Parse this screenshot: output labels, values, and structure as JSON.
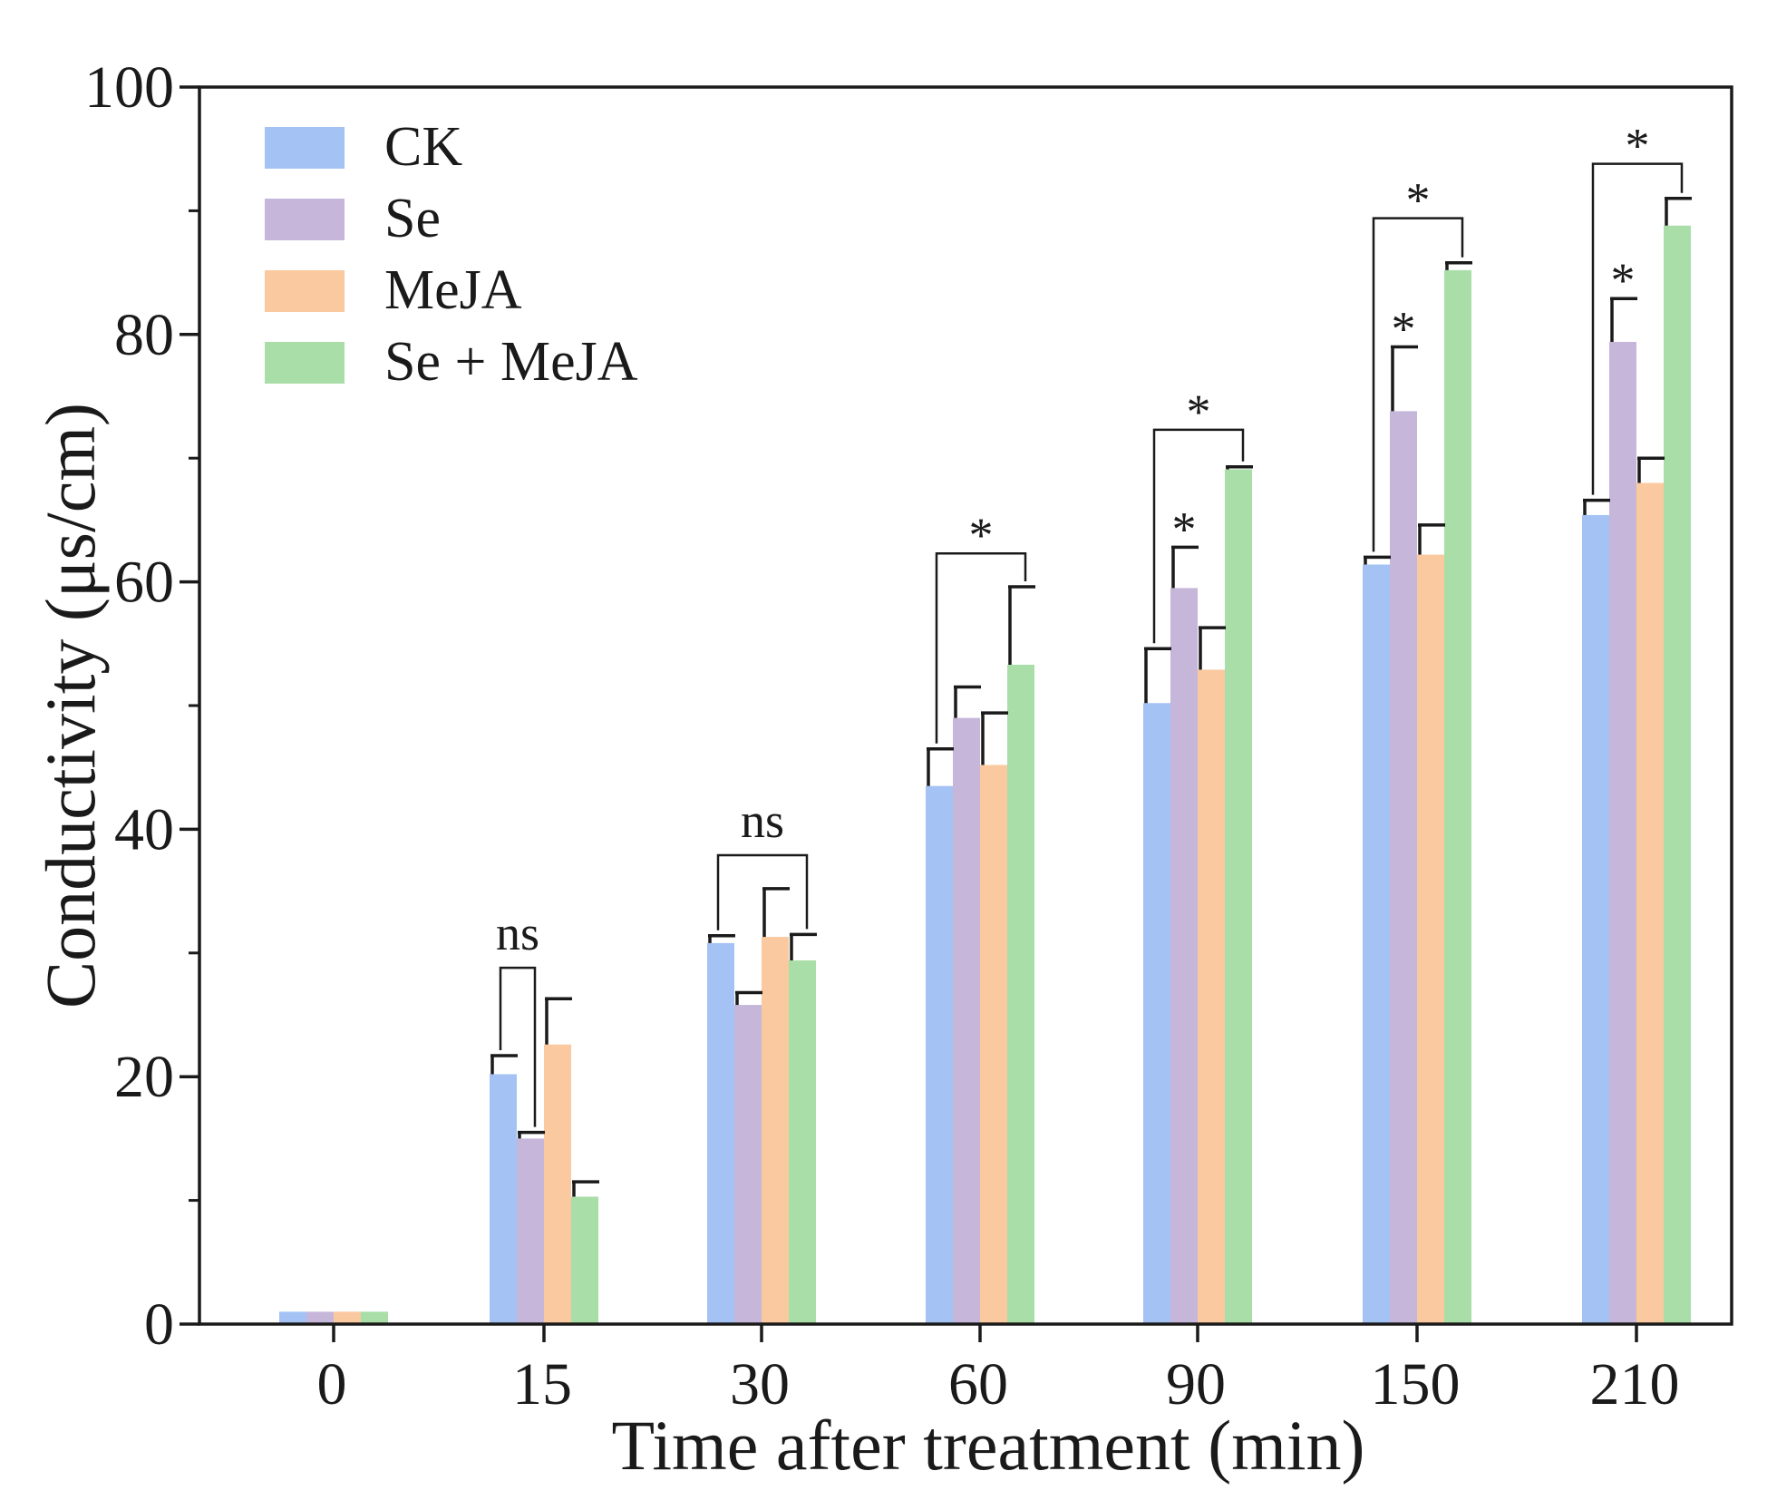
{
  "chart_data": {
    "type": "bar",
    "title": "",
    "xlabel": "Time after treatment (min)",
    "ylabel": "Conductivity (μs/cm)",
    "ylim": [
      0,
      100
    ],
    "yticks": [
      0,
      20,
      40,
      60,
      80,
      100
    ],
    "categories": [
      "0",
      "15",
      "30",
      "60",
      "90",
      "150",
      "210"
    ],
    "legend_position": "top-left",
    "series": [
      {
        "name": "CK",
        "color": "#a4c2f4",
        "values": [
          1.0,
          20.2,
          30.8,
          43.5,
          50.2,
          61.4,
          65.4
        ],
        "errors": [
          0.1,
          1.5,
          0.6,
          3.0,
          4.4,
          0.6,
          1.2
        ]
      },
      {
        "name": "Se",
        "color": "#c5b6da",
        "values": [
          1.0,
          15.0,
          25.8,
          49.0,
          59.5,
          73.8,
          79.4
        ],
        "errors": [
          0.1,
          0.5,
          1.0,
          2.5,
          3.3,
          5.2,
          3.5
        ]
      },
      {
        "name": "MeJA",
        "color": "#fac99f",
        "values": [
          1.0,
          22.6,
          31.3,
          45.2,
          52.9,
          62.2,
          68.0
        ],
        "errors": [
          0.1,
          3.7,
          3.9,
          4.2,
          3.4,
          2.4,
          2.0
        ]
      },
      {
        "name": "Se + MeJA",
        "color": "#a9dea9",
        "values": [
          1.0,
          10.3,
          29.4,
          53.3,
          69.1,
          85.2,
          88.8
        ],
        "errors": [
          0.1,
          1.2,
          2.1,
          6.3,
          0.2,
          0.6,
          2.2
        ]
      }
    ],
    "annotations": [
      {
        "text": "ns",
        "type": "bracket",
        "category": "15",
        "from_series": 0,
        "to_series": 1,
        "bracket_y": 28.8
      },
      {
        "text": "ns",
        "type": "bracket",
        "category": "30",
        "from_series": 0,
        "to_series": 3,
        "bracket_y": 37.9
      },
      {
        "text": "*",
        "type": "bracket",
        "category": "60",
        "from_series": 0,
        "to_series": 3,
        "bracket_y": 62.3
      },
      {
        "text": "*",
        "type": "bracket",
        "category": "90",
        "from_series": 0,
        "to_series": 3,
        "bracket_y": 72.3
      },
      {
        "text": "*",
        "type": "bracket",
        "category": "150",
        "from_series": 0,
        "to_series": 3,
        "bracket_y": 89.4
      },
      {
        "text": "*",
        "type": "bracket",
        "category": "210",
        "from_series": 0,
        "to_series": 3,
        "bracket_y": 93.8
      },
      {
        "text": "*",
        "type": "star",
        "category": "90",
        "series": 1
      },
      {
        "text": "*",
        "type": "star",
        "category": "150",
        "series": 1
      },
      {
        "text": "*",
        "type": "star",
        "category": "210",
        "series": 1
      }
    ]
  }
}
